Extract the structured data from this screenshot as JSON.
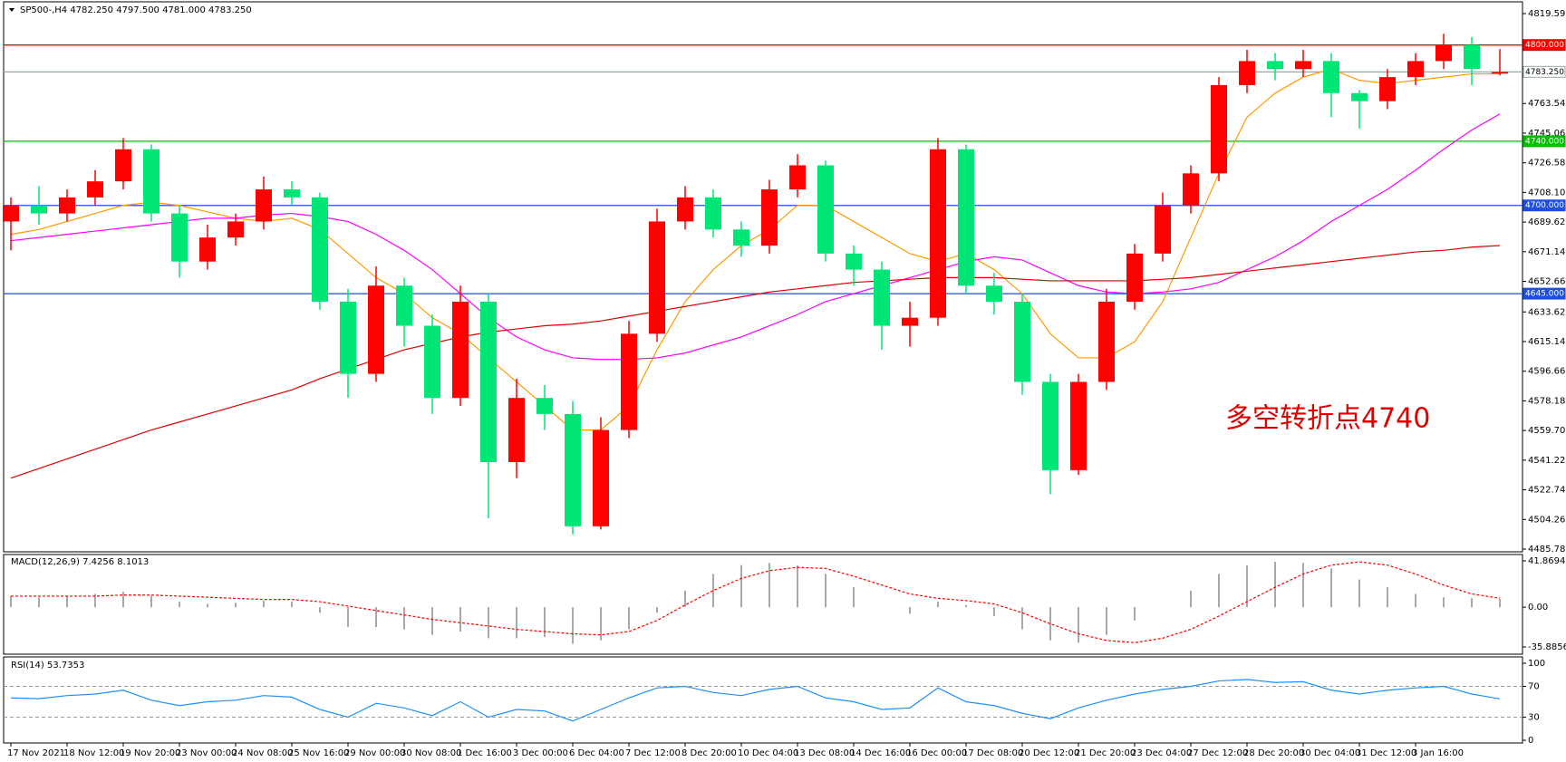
{
  "chart_data": [
    {
      "type": "candlestick",
      "title": "SP500-,H4  4782.250 4797.500 4781.000 4783.250",
      "categories": [
        "17 Nov 2021",
        null,
        "18 Nov 12:00",
        null,
        "19 Nov 20:00",
        null,
        "23 Nov 00:00",
        null,
        "24 Nov 08:00",
        null,
        "25 Nov 16:00",
        null,
        "29 Nov 00:00",
        null,
        "30 Nov 08:00",
        null,
        "1 Dec 16:00",
        null,
        "3 Dec 00:00",
        null,
        "6 Dec 04:00",
        null,
        "7 Dec 12:00",
        null,
        "8 Dec 20:00",
        null,
        "10 Dec 04:00",
        null,
        "13 Dec 08:00",
        null,
        "14 Dec 16:00",
        null,
        "16 Dec 00:00",
        null,
        "17 Dec 08:00",
        null,
        "20 Dec 12:00",
        null,
        "21 Dec 20:00",
        null,
        "23 Dec 04:00",
        null,
        "27 Dec 12:00",
        null,
        "28 Dec 20:00",
        null,
        "30 Dec 04:00",
        null,
        "31 Dec 12:00",
        null,
        "3 Jan 16:00",
        null,
        null,
        null
      ],
      "open": [
        4690,
        4700,
        4695,
        4705,
        4715,
        4735,
        4695,
        4665,
        4680,
        4690,
        4710,
        4705,
        4640,
        4595,
        4650,
        4625,
        4580,
        4640,
        4540,
        4580,
        4570,
        4500,
        4560,
        4620,
        4690,
        4705,
        4685,
        4675,
        4710,
        4725,
        4670,
        4660,
        4625,
        4630,
        4735,
        4650,
        4640,
        4590,
        4535,
        4590,
        4640,
        4670,
        4700,
        4720,
        4775,
        4790,
        4785,
        4790,
        4770,
        4765,
        4780,
        4790,
        4800,
        4782.25
      ],
      "high": [
        4705,
        4712,
        4710,
        4722,
        4742,
        4738,
        4700,
        4688,
        4695,
        4718,
        4715,
        4708,
        4648,
        4662,
        4655,
        4632,
        4650,
        4645,
        4592,
        4588,
        4578,
        4568,
        4628,
        4698,
        4712,
        4710,
        4690,
        4716,
        4732,
        4728,
        4675,
        4665,
        4640,
        4742,
        4738,
        4658,
        4645,
        4595,
        4595,
        4648,
        4676,
        4708,
        4725,
        4780,
        4797,
        4795,
        4797,
        4795,
        4772,
        4785,
        4795,
        4807,
        4805,
        4797.5
      ],
      "low": [
        4672,
        4688,
        4690,
        4700,
        4710,
        4690,
        4655,
        4660,
        4675,
        4685,
        4700,
        4635,
        4580,
        4590,
        4612,
        4570,
        4575,
        4505,
        4530,
        4560,
        4495,
        4498,
        4555,
        4615,
        4685,
        4680,
        4668,
        4670,
        4705,
        4665,
        4650,
        4610,
        4612,
        4625,
        4645,
        4632,
        4582,
        4520,
        4532,
        4585,
        4635,
        4665,
        4695,
        4715,
        4770,
        4778,
        4780,
        4755,
        4748,
        4760,
        4775,
        4785,
        4775,
        4781
      ],
      "close": [
        4700,
        4695,
        4705,
        4715,
        4735,
        4695,
        4665,
        4680,
        4690,
        4710,
        4705,
        4640,
        4595,
        4650,
        4625,
        4580,
        4640,
        4540,
        4580,
        4570,
        4500,
        4560,
        4620,
        4690,
        4705,
        4685,
        4675,
        4710,
        4725,
        4670,
        4660,
        4625,
        4630,
        4735,
        4650,
        4640,
        4590,
        4535,
        4590,
        4640,
        4670,
        4700,
        4720,
        4775,
        4790,
        4785,
        4790,
        4770,
        4765,
        4780,
        4790,
        4800,
        4785,
        4783.25
      ],
      "up_color": "#ff0000",
      "down_color": "#00e676",
      "series": [
        {
          "color": "#ff9900",
          "values": [
            4682,
            4685,
            4690,
            4695,
            4700,
            4702,
            4700,
            4696,
            4692,
            4690,
            4692,
            4685,
            4670,
            4655,
            4645,
            4630,
            4620,
            4605,
            4590,
            4575,
            4560,
            4560,
            4575,
            4610,
            4640,
            4660,
            4675,
            4685,
            4700,
            4700,
            4690,
            4680,
            4670,
            4665,
            4670,
            4660,
            4645,
            4620,
            4605,
            4605,
            4615,
            4640,
            4680,
            4720,
            4755,
            4770,
            4780,
            4785,
            4778,
            4776,
            4778,
            4780,
            4782,
            4782
          ]
        },
        {
          "color": "#ff00ff",
          "values": [
            4678,
            4680,
            4682,
            4684,
            4686,
            4688,
            4690,
            4692,
            4692,
            4694,
            4695,
            4693,
            4690,
            4682,
            4672,
            4660,
            4645,
            4630,
            4618,
            4610,
            4605,
            4604,
            4604,
            4605,
            4608,
            4613,
            4618,
            4625,
            4632,
            4640,
            4645,
            4650,
            4655,
            4660,
            4665,
            4668,
            4666,
            4658,
            4650,
            4646,
            4645,
            4646,
            4648,
            4652,
            4660,
            4668,
            4678,
            4690,
            4700,
            4710,
            4722,
            4735,
            4747,
            4757
          ]
        },
        {
          "color": "#e00000",
          "values": [
            4530,
            4536,
            4542,
            4548,
            4554,
            4560,
            4565,
            4570,
            4575,
            4580,
            4585,
            4592,
            4598,
            4604,
            4610,
            4614,
            4618,
            4621,
            4623,
            4625,
            4626,
            4628,
            4631,
            4634,
            4637,
            4640,
            4643,
            4646,
            4648,
            4650,
            4652,
            4653,
            4654,
            4655,
            4655,
            4655,
            4654,
            4653,
            4653,
            4653,
            4653,
            4654,
            4655,
            4657,
            4659,
            4661,
            4663,
            4665,
            4667,
            4669,
            4671,
            4672,
            4674,
            4675
          ]
        }
      ],
      "ylim": [
        4485.78,
        4819.59
      ],
      "yticks": [
        {
          "value": 4819.59,
          "label": "4819.590"
        },
        {
          "value": 4763.54,
          "label": "4763.540"
        },
        {
          "value": 4745.06,
          "label": "4745.060"
        },
        {
          "value": 4726.58,
          "label": "4726.580"
        },
        {
          "value": 4708.1,
          "label": "4708.100"
        },
        {
          "value": 4689.62,
          "label": "4689.620"
        },
        {
          "value": 4671.14,
          "label": "4671.140"
        },
        {
          "value": 4652.66,
          "label": "4652.660"
        },
        {
          "value": 4633.62,
          "label": "4633.620"
        },
        {
          "value": 4615.14,
          "label": "4615.140"
        },
        {
          "value": 4596.66,
          "label": "4596.660"
        },
        {
          "value": 4578.18,
          "label": "4578.180"
        },
        {
          "value": 4559.7,
          "label": "4559.700"
        },
        {
          "value": 4541.22,
          "label": "4541.220"
        },
        {
          "value": 4522.74,
          "label": "4522.740"
        },
        {
          "value": 4504.26,
          "label": "4504.260"
        },
        {
          "value": 4485.78,
          "label": "4485.780"
        }
      ],
      "hlines": [
        {
          "value": 4800,
          "label": "4800.000",
          "color": "#ff0000",
          "text_color": "#ffffff"
        },
        {
          "value": 4783.25,
          "label": "4783.250",
          "color": "#9aa8a8",
          "text_color": "#000000"
        },
        {
          "value": 4740,
          "label": "4740.000",
          "color": "#00c000",
          "text_color": "#ffffff"
        },
        {
          "value": 4700,
          "label": "4700.000",
          "color": "#1f4fe0",
          "text_color": "#ffffff"
        },
        {
          "value": 4645,
          "label": "4645.000",
          "color": "#1f4fe0",
          "text_color": "#ffffff"
        }
      ],
      "annotation": {
        "text": "多空转折点4740",
        "color": "#e00000"
      }
    },
    {
      "type": "macd",
      "title": "MACD(12,26,9) 7.4256 8.1013",
      "series": [
        {
          "kind": "bar",
          "color": "#a8a8a8",
          "values": [
            10,
            9,
            10,
            12,
            14,
            10,
            5,
            3,
            4,
            6,
            5,
            -5,
            -18,
            -18,
            -20,
            -25,
            -22,
            -28,
            -28,
            -27,
            -33,
            -30,
            -20,
            -5,
            15,
            30,
            38,
            40,
            38,
            30,
            18,
            0,
            -6,
            5,
            2,
            -8,
            -20,
            -30,
            -32,
            -25,
            -12,
            0,
            15,
            30,
            38,
            41,
            40,
            35,
            25,
            18,
            12,
            9,
            8,
            7.4256
          ]
        },
        {
          "kind": "line",
          "dashed": true,
          "color": "#ff0000",
          "values": [
            10,
            10,
            10,
            10,
            11,
            11,
            10,
            9,
            8,
            7,
            7,
            5,
            1,
            -3,
            -7,
            -11,
            -14,
            -17,
            -20,
            -22,
            -24,
            -25,
            -22,
            -12,
            2,
            15,
            26,
            33,
            36,
            35,
            28,
            20,
            12,
            8,
            6,
            3,
            -5,
            -15,
            -24,
            -30,
            -32,
            -28,
            -20,
            -8,
            5,
            18,
            30,
            38,
            41,
            38,
            30,
            20,
            12,
            8.1013
          ]
        }
      ],
      "ylim": [
        -35.8856,
        41.8694
      ],
      "yticks": [
        41.8694,
        {
          "value": 0,
          "label": "0.00"
        },
        -35.8856
      ]
    },
    {
      "type": "rsi",
      "title": "RSI(14) 53.7353",
      "series": [
        {
          "kind": "line",
          "color": "#1e90ff",
          "values": [
            55,
            54,
            58,
            60,
            65,
            52,
            45,
            50,
            52,
            58,
            56,
            40,
            30,
            48,
            42,
            32,
            50,
            30,
            40,
            38,
            25,
            40,
            55,
            68,
            70,
            62,
            58,
            66,
            70,
            55,
            50,
            40,
            42,
            68,
            50,
            45,
            35,
            28,
            42,
            52,
            60,
            66,
            70,
            77,
            79,
            75,
            76,
            65,
            60,
            65,
            68,
            70,
            60,
            53.7353
          ]
        }
      ],
      "ylim": [
        0,
        100
      ],
      "yticks": [
        100,
        70,
        30,
        0
      ],
      "levels": [
        70,
        30
      ]
    }
  ]
}
